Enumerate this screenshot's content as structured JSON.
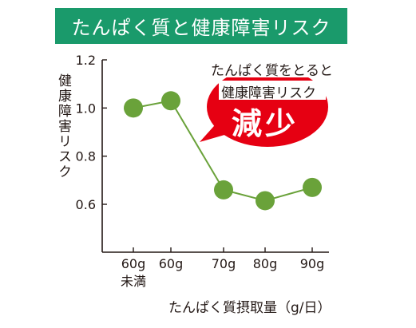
{
  "title": "たんぱく質と健康障害リスク",
  "colors": {
    "title_bg": "#1a9a6b",
    "line": "#6aa23a",
    "marker": "#6aa23a",
    "callout": "#e60012",
    "axis": "#231815"
  },
  "callout": {
    "line1": "たんぱく質をとると",
    "line2": "健康障害リスク",
    "emphasis": "減少"
  },
  "chart_data": {
    "type": "line",
    "title": "たんぱく質と健康障害リスク",
    "ylabel": "健康障害リスク",
    "xlabel": "たんぱく質摂取量（g/日）",
    "categories": [
      "60g未満",
      "60g",
      "70g",
      "80g",
      "90g"
    ],
    "category_labels": [
      [
        "60g",
        "未満"
      ],
      [
        "60g"
      ],
      [
        "70g"
      ],
      [
        "80g"
      ],
      [
        "90g"
      ]
    ],
    "values": [
      1.0,
      1.03,
      0.66,
      0.615,
      0.67
    ],
    "yticks": [
      "1.2",
      "1.0",
      "0.8",
      "0.6"
    ],
    "ylim": [
      0.6,
      1.2
    ],
    "grid": false
  }
}
